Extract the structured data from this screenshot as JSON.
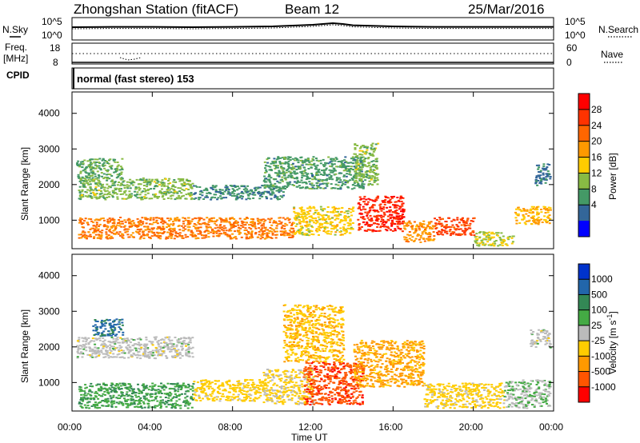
{
  "header": {
    "title": "Zhongshan Station (fitACF)",
    "beam": "Beam 12",
    "date": "25/Mar/2016"
  },
  "nsky_panel": {
    "label": "N.Sky",
    "left_ticks": [
      "10^5",
      "10^0"
    ],
    "right_ticks": [
      "10^5",
      "10^0"
    ],
    "right_label": "N.Search"
  },
  "freq_panel": {
    "label_line1": "Freq.",
    "label_line2": "[MHz]",
    "left_ticks": [
      "18",
      "8"
    ],
    "right_ticks": [
      "60",
      "0"
    ],
    "right_label": "Nave"
  },
  "cpid": {
    "label": "CPID",
    "value": "normal (fast stereo) 153"
  },
  "axes": {
    "ylabel": "Slant Range [km]",
    "xlabel": "Time UT",
    "y_ticks": [
      "4000",
      "3000",
      "2000",
      "1000"
    ],
    "x_ticks": [
      "00:00",
      "04:00",
      "08:00",
      "12:00",
      "16:00",
      "20:00",
      "00:00"
    ]
  },
  "power_colorbar": {
    "label": "Power [dB]",
    "ticks": [
      "28",
      "24",
      "20",
      "16",
      "12",
      "8",
      "4"
    ],
    "colors": [
      "#ff0000",
      "#ff3300",
      "#ff6600",
      "#ff9900",
      "#ffcc00",
      "#88bb44",
      "#449966",
      "#336699",
      "#0000ff"
    ]
  },
  "velocity_colorbar": {
    "label": "Velocity [m s",
    "label_sup": "-1",
    "label_end": "]",
    "ticks": [
      "1000",
      "500",
      "100",
      "25",
      "-25",
      "-100",
      "-500",
      "-1000"
    ],
    "colors": [
      "#0033cc",
      "#2266aa",
      "#338855",
      "#44aa44",
      "#bbbbbb",
      "#ffcc00",
      "#ff9900",
      "#ff5500",
      "#ff0000"
    ]
  },
  "chart_data": [
    {
      "type": "line",
      "title": "N.Sky",
      "x_hours": [
        0,
        2,
        4,
        6,
        8,
        10,
        11,
        12,
        12.5,
        13,
        13.5,
        14,
        16,
        18,
        20,
        22,
        24
      ],
      "y_level": [
        0.7,
        0.72,
        0.72,
        0.7,
        0.72,
        0.75,
        0.8,
        0.85,
        0.9,
        0.95,
        0.9,
        0.82,
        0.75,
        0.72,
        0.72,
        0.72,
        0.72
      ]
    },
    {
      "type": "scatter",
      "title": "Freq. [MHz]",
      "x_hours": [
        0,
        2,
        2.6,
        3,
        3.4,
        4,
        6,
        8,
        12,
        16,
        20,
        24
      ],
      "freq_mhz": [
        12,
        12,
        10.5,
        9.5,
        10.5,
        12,
        12,
        12,
        12,
        12,
        12,
        12
      ]
    },
    {
      "type": "heatmap",
      "title": "Power [dB]",
      "xlim_hours": [
        0,
        24
      ],
      "ylim_km": [
        200,
        4600
      ],
      "clim_db": [
        0,
        32
      ],
      "blobs": [
        {
          "t0": 0.2,
          "t1": 2.5,
          "r0": 2200,
          "r1": 2750,
          "db": 10
        },
        {
          "t0": 0.3,
          "t1": 6.0,
          "r0": 1600,
          "r1": 2200,
          "db": 12
        },
        {
          "t0": 6.0,
          "t1": 10.5,
          "r0": 1600,
          "r1": 2000,
          "db": 8
        },
        {
          "t0": 0.3,
          "t1": 11.0,
          "r0": 500,
          "r1": 1100,
          "db": 22
        },
        {
          "t0": 11.0,
          "t1": 14.0,
          "r0": 600,
          "r1": 1400,
          "db": 16
        },
        {
          "t0": 14.2,
          "t1": 16.5,
          "r0": 700,
          "r1": 1700,
          "db": 28
        },
        {
          "t0": 16.5,
          "t1": 18.0,
          "r0": 400,
          "r1": 1000,
          "db": 20
        },
        {
          "t0": 18.0,
          "t1": 20.0,
          "r0": 600,
          "r1": 1100,
          "db": 26
        },
        {
          "t0": 20.0,
          "t1": 22.0,
          "r0": 300,
          "r1": 700,
          "db": 14
        },
        {
          "t0": 22.0,
          "t1": 23.8,
          "r0": 900,
          "r1": 1400,
          "db": 18
        },
        {
          "t0": 23.0,
          "t1": 23.8,
          "r0": 2000,
          "r1": 2600,
          "db": 6
        },
        {
          "t0": 9.5,
          "t1": 14.5,
          "r0": 1900,
          "r1": 2800,
          "db": 9
        },
        {
          "t0": 14.0,
          "t1": 15.2,
          "r0": 2000,
          "r1": 3200,
          "db": 12
        }
      ]
    },
    {
      "type": "heatmap",
      "title": "Velocity [m s-1]",
      "xlim_hours": [
        0,
        24
      ],
      "ylim_km": [
        200,
        4600
      ],
      "clim_ms": [
        -1000,
        1000
      ],
      "blobs": [
        {
          "t0": 0.2,
          "t1": 6.0,
          "r0": 1700,
          "r1": 2300,
          "v": 0
        },
        {
          "t0": 1.0,
          "t1": 2.5,
          "r0": 2300,
          "r1": 2800,
          "v": 600
        },
        {
          "t0": 0.3,
          "t1": 6.0,
          "r0": 300,
          "r1": 1000,
          "v": 300
        },
        {
          "t0": 6.0,
          "t1": 9.5,
          "r0": 500,
          "r1": 1100,
          "v": -200
        },
        {
          "t0": 9.5,
          "t1": 12.0,
          "r0": 400,
          "r1": 1400,
          "v": -150
        },
        {
          "t0": 11.5,
          "t1": 14.5,
          "r0": 400,
          "r1": 1600,
          "v": -700
        },
        {
          "t0": 10.5,
          "t1": 13.5,
          "r0": 1600,
          "r1": 3200,
          "v": -300
        },
        {
          "t0": 14.0,
          "t1": 17.5,
          "r0": 900,
          "r1": 2200,
          "v": -400
        },
        {
          "t0": 17.5,
          "t1": 21.5,
          "r0": 300,
          "r1": 1000,
          "v": -200
        },
        {
          "t0": 21.5,
          "t1": 23.8,
          "r0": 300,
          "r1": 1100,
          "v": 80
        },
        {
          "t0": 22.8,
          "t1": 23.8,
          "r0": 2000,
          "r1": 2500,
          "v": 0
        }
      ]
    }
  ]
}
